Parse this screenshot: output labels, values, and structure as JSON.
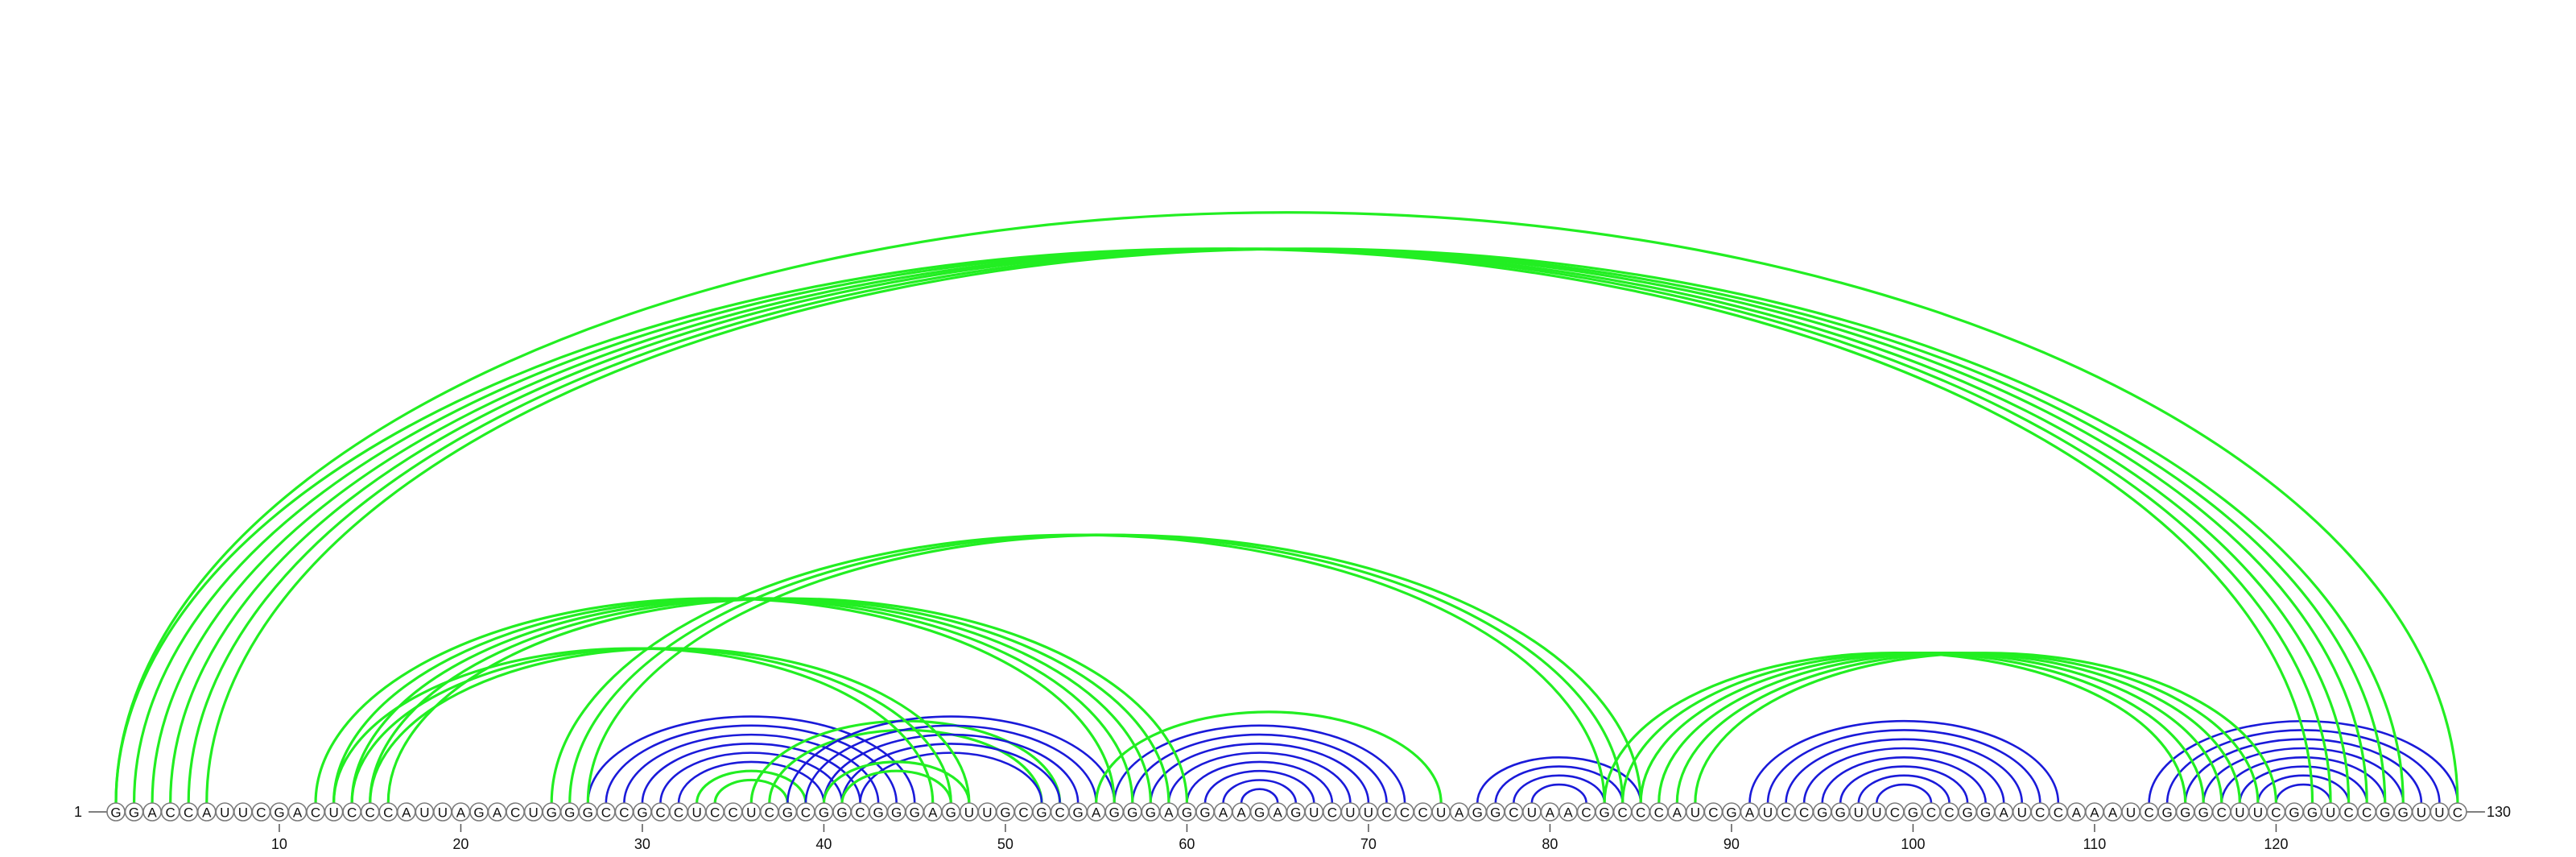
{
  "sequence": "GGACCAUUCGACUCCCAUUAGACUGGGCCGCCUCCUCGCGGCGGGAGUUGCGCGAGGGAGGAAGAGUCUUCCCUAGGCUAACGCCCAUCGAUCCGGUUCGCCGGAUCCAAAUCGGGCUUCGGUCCGGUUC",
  "start_label": "1",
  "end_label": "130",
  "ticks": [
    10,
    20,
    30,
    40,
    50,
    60,
    70,
    80,
    90,
    100,
    110,
    120
  ],
  "colors": {
    "green": "#22ee22",
    "blue": "#1a1ad9"
  },
  "helices": [
    {
      "color": "blue",
      "pairs": [
        [
          27,
          45
        ],
        [
          28,
          44
        ],
        [
          29,
          43
        ],
        [
          30,
          42
        ],
        [
          31,
          41
        ],
        [
          32,
          40
        ]
      ]
    },
    {
      "color": "green",
      "pairs": [
        [
          33,
          39
        ],
        [
          34,
          38
        ]
      ]
    },
    {
      "color": "green",
      "pairs": [
        [
          36,
          53
        ],
        [
          37,
          52
        ]
      ]
    },
    {
      "color": "blue",
      "pairs": [
        [
          38,
          56
        ],
        [
          39,
          55
        ],
        [
          40,
          54
        ],
        [
          41,
          53
        ],
        [
          42,
          52
        ]
      ]
    },
    {
      "color": "green",
      "pairs": [
        [
          40,
          48
        ],
        [
          41,
          47
        ]
      ]
    },
    {
      "color": "blue",
      "pairs": [
        [
          56,
          72
        ],
        [
          57,
          71
        ],
        [
          58,
          70
        ],
        [
          59,
          69
        ],
        [
          60,
          68
        ],
        [
          61,
          67
        ],
        [
          62,
          66
        ],
        [
          63,
          65
        ]
      ]
    },
    {
      "color": "green",
      "pairs": [
        [
          55,
          74
        ]
      ]
    },
    {
      "color": "blue",
      "pairs": [
        [
          76,
          85
        ],
        [
          77,
          84
        ],
        [
          78,
          83
        ],
        [
          79,
          82
        ]
      ]
    },
    {
      "color": "blue",
      "pairs": [
        [
          91,
          108
        ],
        [
          92,
          107
        ],
        [
          93,
          106
        ],
        [
          94,
          105
        ],
        [
          95,
          104
        ],
        [
          96,
          103
        ],
        [
          97,
          102
        ],
        [
          98,
          101
        ]
      ]
    },
    {
      "color": "blue",
      "pairs": [
        [
          113,
          130
        ],
        [
          114,
          129
        ],
        [
          115,
          128
        ],
        [
          116,
          127
        ],
        [
          117,
          126
        ],
        [
          118,
          125
        ],
        [
          119,
          124
        ],
        [
          120,
          123
        ]
      ]
    },
    {
      "color": "green",
      "pairs": [
        [
          1,
          122
        ],
        [
          2,
          123
        ],
        [
          3,
          124
        ],
        [
          4,
          125
        ],
        [
          5,
          126
        ],
        [
          6,
          127
        ]
      ]
    },
    {
      "color": "green",
      "pairs": [
        [
          1,
          130
        ]
      ]
    },
    {
      "color": "green",
      "pairs": [
        [
          12,
          56
        ],
        [
          13,
          57
        ],
        [
          14,
          58
        ],
        [
          15,
          59
        ],
        [
          16,
          60
        ]
      ]
    },
    {
      "color": "green",
      "pairs": [
        [
          13,
          46
        ],
        [
          14,
          47
        ],
        [
          15,
          48
        ]
      ]
    },
    {
      "color": "green",
      "pairs": [
        [
          25,
          83
        ],
        [
          26,
          84
        ],
        [
          27,
          85
        ]
      ]
    },
    {
      "color": "green",
      "pairs": [
        [
          83,
          115
        ],
        [
          84,
          116
        ],
        [
          85,
          117
        ],
        [
          86,
          118
        ],
        [
          87,
          119
        ],
        [
          88,
          120
        ]
      ]
    }
  ]
}
